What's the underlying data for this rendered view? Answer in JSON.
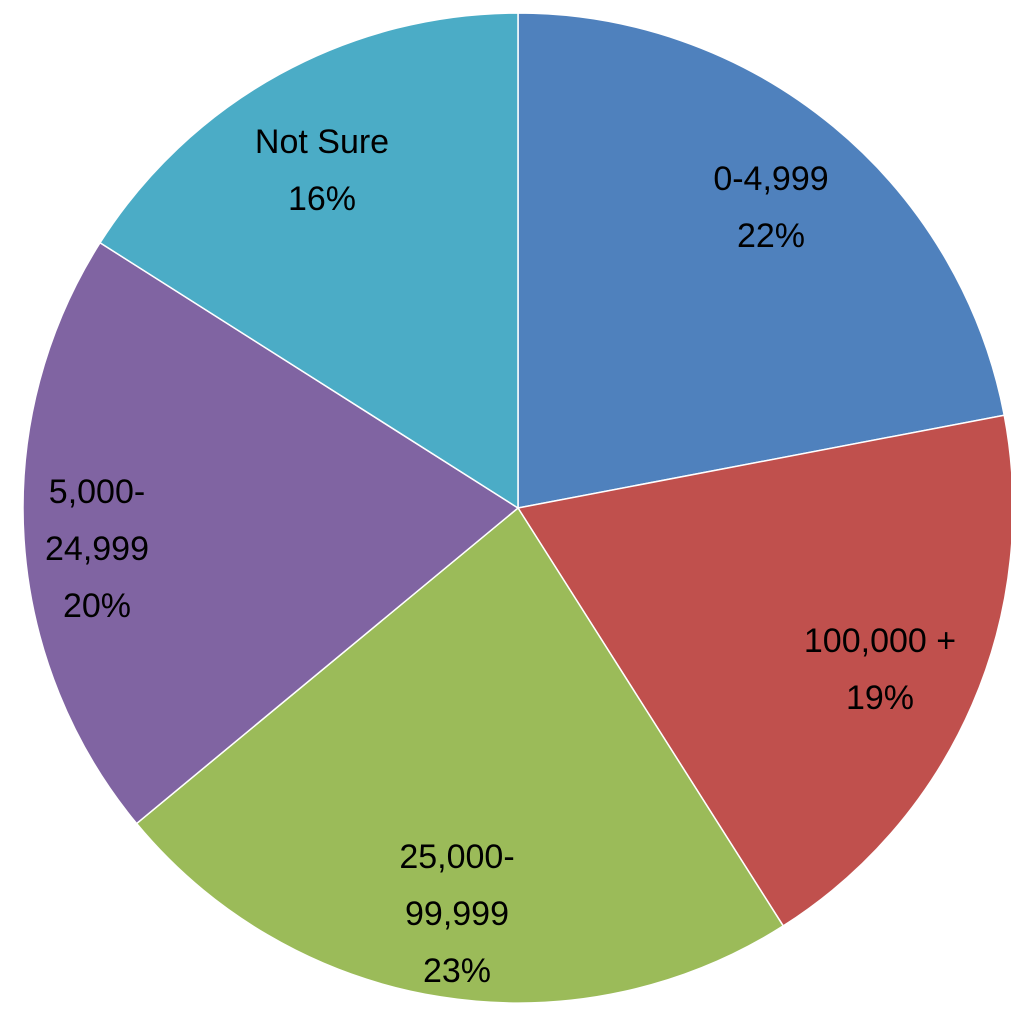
{
  "chart_data": {
    "type": "pie",
    "title": "",
    "start_angle_deg": 0,
    "direction": "clockwise",
    "slices": [
      {
        "category": "0-4,999",
        "label_lines": [
          "0-4,999"
        ],
        "percent_label": "22%",
        "value": 22,
        "color": "#4F81BD"
      },
      {
        "category": "100,000 +",
        "label_lines": [
          "100,000 +"
        ],
        "percent_label": "19%",
        "value": 19,
        "color": "#C0504D"
      },
      {
        "category": "25,000-99,999",
        "label_lines": [
          "25,000-",
          "99,999"
        ],
        "percent_label": "23%",
        "value": 23,
        "color": "#9BBB59"
      },
      {
        "category": "5,000-24,999",
        "label_lines": [
          "5,000-",
          "24,999"
        ],
        "percent_label": "20%",
        "value": 20,
        "color": "#8064A2"
      },
      {
        "category": "Not Sure",
        "label_lines": [
          "Not Sure"
        ],
        "percent_label": "16%",
        "value": 16,
        "color": "#4BACC6"
      }
    ]
  }
}
